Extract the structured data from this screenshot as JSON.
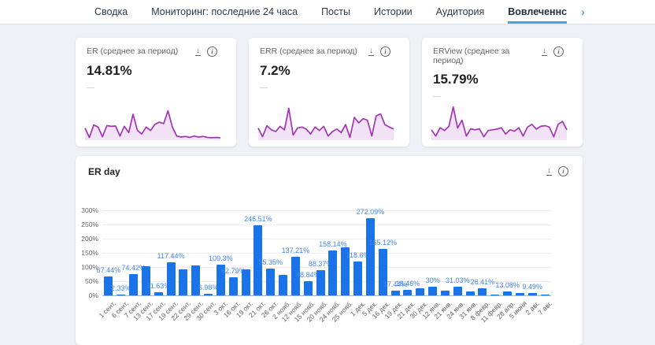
{
  "tabs": {
    "items": [
      {
        "id": "summary",
        "label": "Сводка",
        "active": false
      },
      {
        "id": "monitoring-24h",
        "label": "Мониторинг: последние 24 часа",
        "active": false
      },
      {
        "id": "posts",
        "label": "Посты",
        "active": false
      },
      {
        "id": "stories",
        "label": "Истории",
        "active": false
      },
      {
        "id": "audience",
        "label": "Аудитория",
        "active": false
      },
      {
        "id": "engagement",
        "label": "Вовлеченнс",
        "active": true
      }
    ],
    "more_icon": "›"
  },
  "icons": {
    "download": "↓",
    "info": "i"
  },
  "summary_cards": [
    {
      "id": "er",
      "title": "ER (среднее за период)",
      "value": "14.81%",
      "sub": "—"
    },
    {
      "id": "err",
      "title": "ERR (среднее за период)",
      "value": "7.2%",
      "sub": "—"
    },
    {
      "id": "erview",
      "title": "ERView (среднее за период)",
      "value": "15.79%",
      "sub": "—"
    }
  ],
  "big_card": {
    "title": "ER day"
  },
  "colors": {
    "bar_blue": "#1a73e8",
    "label_blue": "#4285f4",
    "tab_underline": "#4aa3df",
    "chevron_blue": "#4aa3df",
    "purple": "#a234b5",
    "purple_fill": "rgba(162,52,181,0.14)",
    "background": "#eef1f5"
  },
  "chart_data": [
    {
      "type": "bar",
      "title": "ER day",
      "categories": [
        "1 сент.",
        "6 сент.",
        "7 сент.",
        "13 сент.",
        "17 сент.",
        "19 сент.",
        "22 сент.",
        "29 сент.",
        "30 сент.",
        "3 окт.",
        "16 окт.",
        "19 окт.",
        "21 окт.",
        "26 окт.",
        "2 нояб.",
        "12 нояб.",
        "15 нояб.",
        "20 нояб.",
        "24 нояб.",
        "25 нояб.",
        "1 дек.",
        "5 дек.",
        "16 дек.",
        "19 дек.",
        "21 дек.",
        "30 дек.",
        "12 янв.",
        "21 янв.",
        "24 янв.",
        "31 янв.",
        "8 февр.",
        "11 февр.",
        "28 апр.",
        "5 июня",
        "2 авг.",
        "7 авг."
      ],
      "values": [
        67.44,
        2.33,
        74.42,
        104,
        11.63,
        117.44,
        92,
        106,
        6.98,
        109.3,
        62.79,
        93,
        246.51,
        95.35,
        72,
        137.21,
        48.84,
        88.37,
        158.14,
        170,
        118.6,
        272.09,
        165.12,
        17.44,
        18.46,
        24,
        30,
        16,
        31.03,
        14,
        26.41,
        2,
        13.08,
        8,
        9.49,
        3
      ],
      "data_labels": [
        "67.44%",
        "2.33%",
        "74.42%",
        null,
        "11.63%",
        "117.44%",
        null,
        null,
        "6.98%",
        "109.3%",
        "62.79%",
        null,
        "246.51%",
        "95.35%",
        null,
        "137.21%",
        "48.84%",
        "88.37%",
        "158.14%",
        null,
        "118.6%",
        "272.09%",
        "165.12%",
        "17.44%",
        "18.46%",
        null,
        "30%",
        null,
        "31.03%",
        null,
        "26.41%",
        null,
        "13.08%",
        null,
        "9.49%",
        null
      ],
      "xlabel": "",
      "ylabel": "",
      "ylim": [
        0,
        300
      ],
      "yticks": [
        "0%",
        "50%",
        "100%",
        "150%",
        "200%",
        "250%",
        "300%"
      ],
      "grid": true,
      "legend": false
    },
    {
      "type": "area",
      "name": "ER sparkline",
      "ylim": [
        0,
        100
      ],
      "values": [
        35,
        8,
        44,
        38,
        10,
        42,
        40,
        41,
        12,
        40,
        22,
        75,
        28,
        18,
        38,
        28,
        46,
        52,
        48,
        85,
        38,
        12,
        9,
        11,
        8,
        12,
        9,
        11,
        8,
        7,
        8,
        7
      ]
    },
    {
      "type": "area",
      "name": "ERR sparkline",
      "ylim": [
        0,
        100
      ],
      "values": [
        35,
        10,
        42,
        30,
        25,
        40,
        30,
        92,
        15,
        35,
        38,
        32,
        18,
        38,
        28,
        40,
        12,
        25,
        32,
        22,
        45,
        8,
        66,
        50,
        62,
        58,
        12,
        70,
        76,
        45,
        38,
        32
      ]
    },
    {
      "type": "area",
      "name": "ERView sparkline",
      "ylim": [
        0,
        100
      ],
      "values": [
        30,
        12,
        36,
        28,
        40,
        96,
        35,
        58,
        12,
        33,
        30,
        33,
        10,
        28,
        30,
        32,
        36,
        18,
        30,
        26,
        36,
        12,
        38,
        46,
        32,
        40,
        42,
        38,
        10,
        46,
        54,
        30
      ]
    }
  ]
}
